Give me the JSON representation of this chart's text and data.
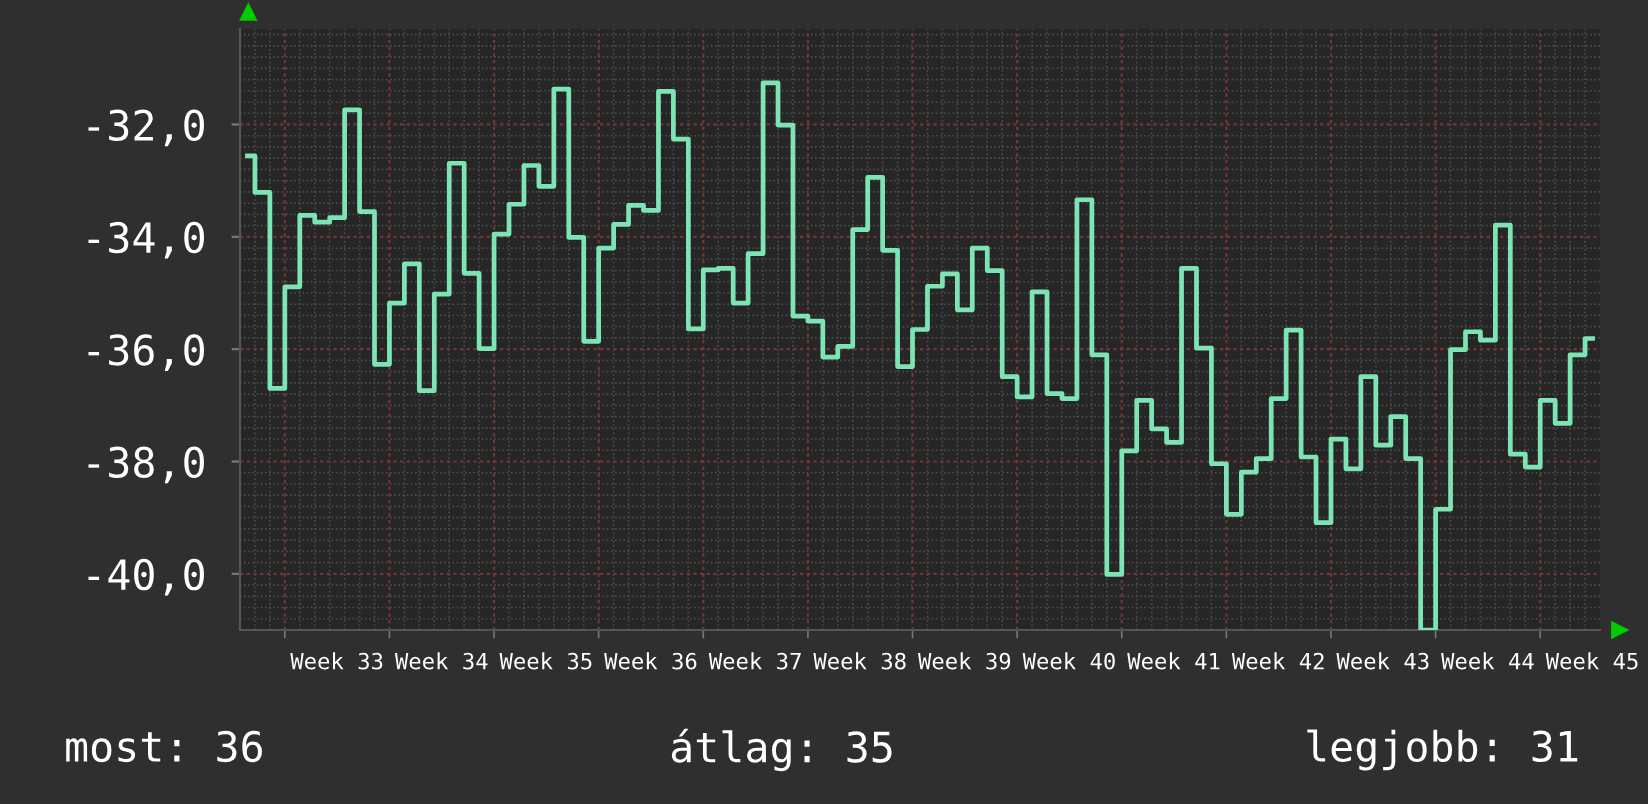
{
  "chart_data": {
    "type": "step",
    "color": "#7de5b4",
    "categories": [
      null,
      null,
      null,
      null,
      null,
      null,
      "Week 33",
      null,
      null,
      null,
      null,
      null,
      null,
      "Week 34",
      null,
      null,
      null,
      null,
      null,
      null,
      "Week 35",
      null,
      null,
      null,
      null,
      null,
      null,
      "Week 36",
      null,
      null,
      null,
      null,
      null,
      null,
      "Week 37",
      null,
      null,
      null,
      null,
      null,
      null,
      "Week 38",
      null,
      null,
      null,
      null,
      null,
      null,
      "Week 39",
      null,
      null,
      null,
      null,
      null,
      null,
      "Week 40",
      null,
      null,
      null,
      null,
      null,
      null,
      "Week 41",
      null,
      null,
      null,
      null,
      null,
      null,
      "Week 42",
      null,
      null,
      null,
      null,
      null,
      null,
      "Week 43",
      null,
      null,
      null,
      null,
      null,
      null,
      "Week 44",
      null,
      null,
      null,
      null,
      null,
      null,
      "Week 45"
    ],
    "values": [
      -32.56,
      -33.21,
      -36.7,
      -34.89,
      -33.62,
      -33.74,
      -33.66,
      -31.74,
      -33.55,
      -36.27,
      -35.18,
      -34.48,
      -36.74,
      -35.02,
      -32.69,
      -34.65,
      -35.99,
      -33.95,
      -33.42,
      -32.73,
      -33.1,
      -31.37,
      -34.01,
      -35.86,
      -34.2,
      -33.78,
      -33.44,
      -33.53,
      -31.41,
      -32.26,
      -35.64,
      -34.59,
      -34.56,
      -35.18,
      -34.3,
      -31.26,
      -32.01,
      -35.41,
      -35.5,
      -36.14,
      -35.95,
      -33.87,
      -32.94,
      -34.24,
      -36.31,
      -35.65,
      -34.88,
      -34.66,
      -35.3,
      -34.2,
      -34.6,
      -36.49,
      -36.85,
      -34.98,
      -36.79,
      -36.88,
      -33.34,
      -36.1,
      -40.01,
      -37.81,
      -36.91,
      -37.42,
      -37.66,
      -34.56,
      -35.98,
      -38.04,
      -38.94,
      -38.19,
      -37.95,
      -36.88,
      -35.66,
      -37.92,
      -39.09,
      -37.6,
      -38.13,
      -36.49,
      -37.71,
      -37.2,
      -37.95,
      -41.0,
      -38.85,
      -36.01,
      -35.69,
      -35.84,
      -33.79,
      -37.87,
      -38.1,
      -36.91,
      -37.32,
      -36.1,
      -35.81
    ],
    "ylim": [
      -41,
      -30.3
    ],
    "yticks": [
      {
        "value": -40,
        "label": "-40,0"
      },
      {
        "value": -38,
        "label": "-38,0"
      },
      {
        "value": -36,
        "label": "-36,0"
      },
      {
        "value": -34,
        "label": "-34,0"
      },
      {
        "value": -32,
        "label": "-32,0"
      }
    ],
    "grid": true,
    "annotations": [
      "most: 36",
      "átlag: 35",
      "legjobb: 31"
    ]
  }
}
